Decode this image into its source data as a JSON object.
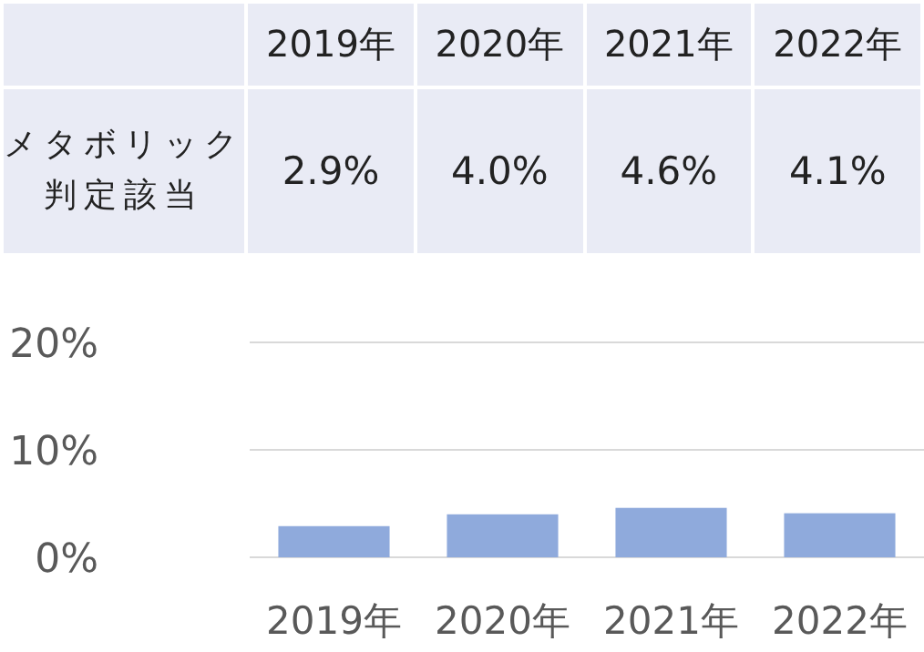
{
  "chart_data": {
    "type": "bar",
    "categories": [
      "2019年",
      "2020年",
      "2021年",
      "2022年"
    ],
    "series": [
      {
        "name": "メタボリック判定該当",
        "color": "#8faadc",
        "values": [
          2.9,
          4.0,
          4.6,
          4.1
        ],
        "value_labels": [
          "2.9%",
          "4.0%",
          "4.6%",
          "4.1%"
        ]
      }
    ],
    "ylim": [
      0,
      20
    ],
    "yticks": [
      {
        "value": 0,
        "label": "0%"
      },
      {
        "value": 10,
        "label": "10%"
      },
      {
        "value": 20,
        "label": "20%"
      }
    ],
    "grid": "y"
  }
}
